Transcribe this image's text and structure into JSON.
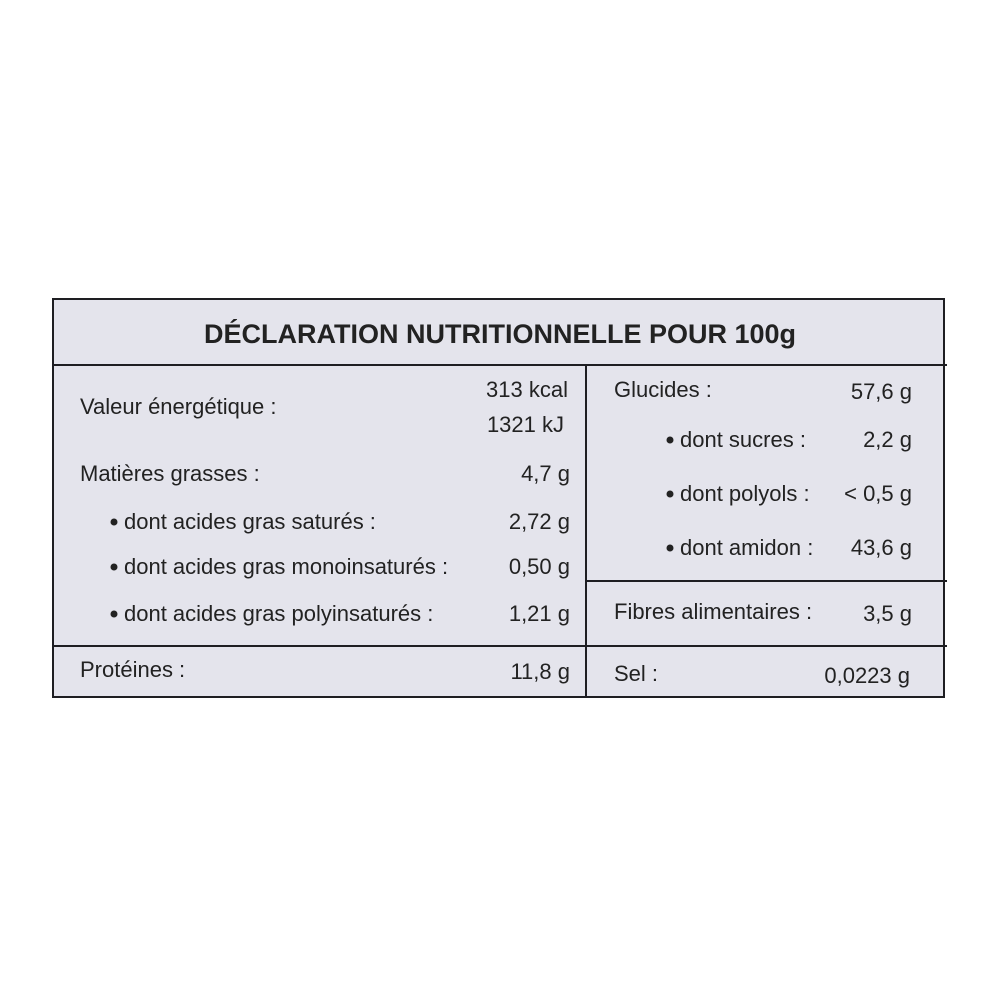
{
  "table": {
    "title": "DÉCLARATION NUTRITIONNELLE POUR 100g",
    "energy": {
      "label": "Valeur énergétique :",
      "values": [
        "313 kcal",
        "1321 kJ"
      ]
    },
    "fat": {
      "label": "Matières grasses :",
      "value": "4,7 g",
      "sub": [
        {
          "label": "dont acides gras saturés :",
          "value": "2,72 g"
        },
        {
          "label": "dont acides gras monoinsaturés :",
          "value": "0,50 g"
        },
        {
          "label": "dont acides gras polyinsaturés :",
          "value": "1,21 g"
        }
      ]
    },
    "protein": {
      "label": "Protéines :",
      "value": "11,8 g"
    },
    "carbs": {
      "label": "Glucides :",
      "value": "57,6 g",
      "sub": [
        {
          "label": "dont sucres :",
          "value": "2,2 g"
        },
        {
          "label": "dont polyols :",
          "value": "< 0,5 g"
        },
        {
          "label": "dont amidon :",
          "value": "43,6 g"
        }
      ]
    },
    "fibre": {
      "label": "Fibres alimentaires :",
      "value": "3,5 g"
    },
    "salt": {
      "label": "Sel :",
      "value": "0,0223 g"
    }
  }
}
